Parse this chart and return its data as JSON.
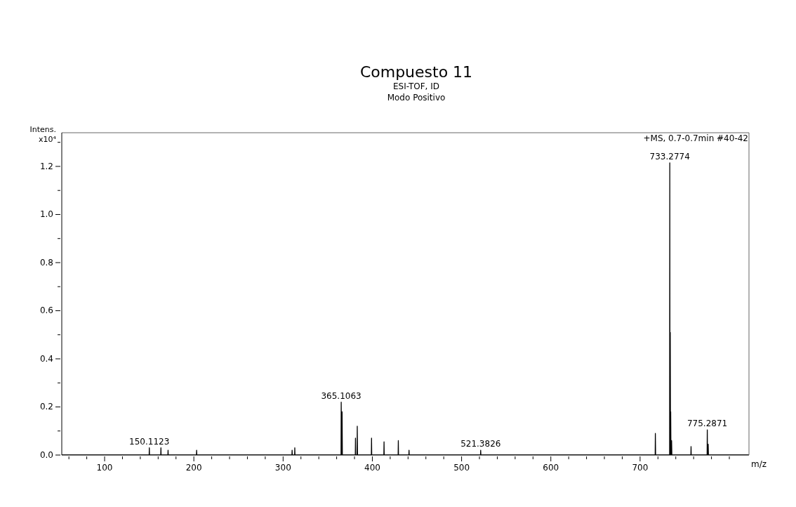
{
  "chart_data": {
    "type": "line",
    "title": "Compuesto 11",
    "subtitle": "ESI-TOF, ID\nModo Positivo",
    "xlabel": "m/z",
    "ylabel": "Intens.\nx10⁴",
    "annotations": [
      "+MS, 0.7-0.7min #40-42",
      {
        "text": "150.1123",
        "x": 150.11,
        "y": 0.03
      },
      {
        "text": "365.1063",
        "x": 365.11,
        "y": 0.22
      },
      {
        "text": "521.3826",
        "x": 521.38,
        "y": 0.02
      },
      {
        "text": "733.2774",
        "x": 733.28,
        "y": 1.215
      },
      {
        "text": "775.2871",
        "x": 775.29,
        "y": 0.105
      }
    ],
    "series": [
      {
        "color": "#000000",
        "x": [
          52,
          149.9,
          150.11,
          150.3,
          162.9,
          163.1,
          163.3,
          170.9,
          171.1,
          171.3,
          202.9,
          203.1,
          203.3,
          309.9,
          310.1,
          310.3,
          312.9,
          313.1,
          313.3,
          364.9,
          365.11,
          365.6,
          366.1,
          366.4,
          380.9,
          381.1,
          381.3,
          382.9,
          383.1,
          383.4,
          398.9,
          399.1,
          399.3,
          412.9,
          413.1,
          413.3,
          428.9,
          429.1,
          429.3,
          440.9,
          441.1,
          441.3,
          521.2,
          521.38,
          521.6,
          716.9,
          717.1,
          717.4,
          733.1,
          733.28,
          733.5,
          733.8,
          734.1,
          734.3,
          734.6,
          735.3,
          735.6,
          756.9,
          757.1,
          757.3,
          775.1,
          775.29,
          775.5,
          776.3,
          776.6,
          822
        ],
        "values": [
          0,
          0,
          0.03,
          0,
          0,
          0.03,
          0,
          0,
          0.02,
          0,
          0,
          0.02,
          0,
          0,
          0.02,
          0,
          0,
          0.03,
          0,
          0,
          0.22,
          0,
          0.18,
          0,
          0,
          0.07,
          0,
          0,
          0.12,
          0,
          0,
          0.07,
          0,
          0,
          0.055,
          0,
          0,
          0.06,
          0,
          0,
          0.02,
          0,
          0,
          0.02,
          0,
          0,
          0.09,
          0,
          0,
          1.215,
          0,
          0.51,
          0,
          0.18,
          0,
          0.06,
          0,
          0,
          0.035,
          0,
          0,
          0.105,
          0,
          0.045,
          0,
          0
        ]
      }
    ],
    "xlim": [
      52,
      822
    ],
    "xticks": [
      {
        "value": 60,
        "label": null
      },
      {
        "value": 80,
        "label": null
      },
      100,
      {
        "value": 120,
        "label": null
      },
      {
        "value": 140,
        "label": null
      },
      {
        "value": 160,
        "label": null
      },
      {
        "value": 180,
        "label": null
      },
      200,
      {
        "value": 220,
        "label": null
      },
      {
        "value": 240,
        "label": null
      },
      {
        "value": 260,
        "label": null
      },
      {
        "value": 280,
        "label": null
      },
      300,
      {
        "value": 320,
        "label": null
      },
      {
        "value": 340,
        "label": null
      },
      {
        "value": 360,
        "label": null
      },
      {
        "value": 380,
        "label": null
      },
      400,
      {
        "value": 420,
        "label": null
      },
      {
        "value": 440,
        "label": null
      },
      {
        "value": 460,
        "label": null
      },
      {
        "value": 480,
        "label": null
      },
      500,
      {
        "value": 520,
        "label": null
      },
      {
        "value": 540,
        "label": null
      },
      {
        "value": 560,
        "label": null
      },
      {
        "value": 580,
        "label": null
      },
      600,
      {
        "value": 620,
        "label": null
      },
      {
        "value": 640,
        "label": null
      },
      {
        "value": 660,
        "label": null
      },
      {
        "value": 680,
        "label": null
      },
      700,
      {
        "value": 720,
        "label": null
      },
      {
        "value": 740,
        "label": null
      },
      {
        "value": 760,
        "label": null
      },
      {
        "value": 780,
        "label": null
      },
      {
        "value": 800,
        "label": null
      }
    ],
    "ylim": [
      0,
      1.34
    ],
    "yticks": [
      {
        "value": 0,
        "label": "0.0"
      },
      {
        "value": 0.1,
        "label": null
      },
      {
        "value": 0.2,
        "label": "0.2"
      },
      {
        "value": 0.3,
        "label": null
      },
      {
        "value": 0.4,
        "label": "0.4"
      },
      {
        "value": 0.5,
        "label": null
      },
      {
        "value": 0.6,
        "label": "0.6"
      },
      {
        "value": 0.7,
        "label": null
      },
      {
        "value": 0.8,
        "label": "0.8"
      },
      {
        "value": 0.9,
        "label": null
      },
      {
        "value": 1.0,
        "label": "1.0"
      },
      {
        "value": 1.1,
        "label": null
      },
      {
        "value": 1.2,
        "label": "1.2"
      },
      {
        "value": 1.3,
        "label": null
      }
    ]
  }
}
